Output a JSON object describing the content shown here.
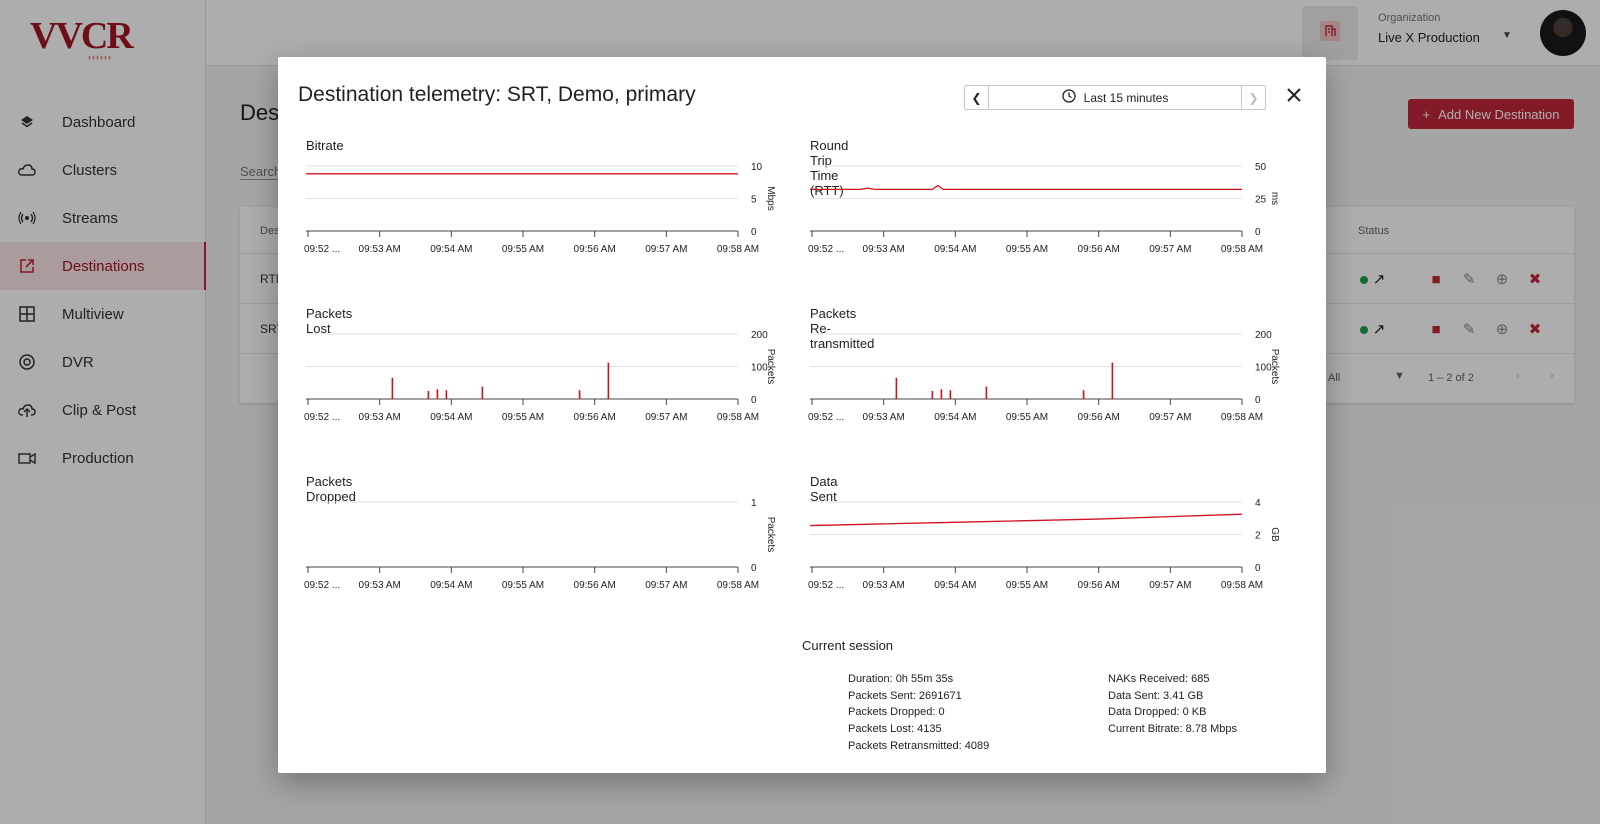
{
  "sidebar": {
    "logo": "VVCR",
    "items": [
      {
        "label": "Dashboard",
        "icon": "layers-icon",
        "active": false
      },
      {
        "label": "Clusters",
        "icon": "cloud-icon",
        "active": false
      },
      {
        "label": "Streams",
        "icon": "broadcast-icon",
        "active": false
      },
      {
        "label": "Destinations",
        "icon": "open-external-icon",
        "active": true
      },
      {
        "label": "Multiview",
        "icon": "grid-icon",
        "active": false
      },
      {
        "label": "DVR",
        "icon": "record-icon",
        "active": false
      },
      {
        "label": "Clip & Post",
        "icon": "cloud-upload-icon",
        "active": false
      },
      {
        "label": "Production",
        "icon": "camera-icon",
        "active": false
      }
    ]
  },
  "topbar": {
    "org_label": "Organization",
    "org_value": "Live X Production"
  },
  "page": {
    "title": "Dest",
    "search_placeholder": "Search",
    "add_button": "Add New Destination",
    "table": {
      "col_destination": "Des",
      "col_status": "Status",
      "rows": [
        {
          "name": "RTM"
        },
        {
          "name": "SRT"
        }
      ],
      "rows_per_page": "All",
      "range": "1 – 2 of 2"
    }
  },
  "modal": {
    "title": "Destination telemetry: SRT, Demo, primary",
    "time_range": "Last 15 minutes",
    "charts": [
      {
        "title": "Bitrate",
        "unit": "Mbps",
        "ticks": [
          "0",
          "5",
          "10"
        ]
      },
      {
        "title": "Round Trip Time (RTT)",
        "unit": "ms",
        "ticks": [
          "0",
          "25",
          "50"
        ]
      },
      {
        "title": "Packets Lost",
        "unit": "Packets",
        "ticks": [
          "0",
          "100",
          "200"
        ]
      },
      {
        "title": "Packets Re-transmitted",
        "unit": "Packets",
        "ticks": [
          "0",
          "100",
          "200"
        ]
      },
      {
        "title": "Packets Dropped",
        "unit": "Packets",
        "ticks": [
          "0",
          "1"
        ]
      },
      {
        "title": "Data Sent",
        "unit": "GB",
        "ticks": [
          "0",
          "2",
          "4"
        ]
      }
    ],
    "session": {
      "title": "Current session",
      "left": [
        "Duration: 0h 55m 35s",
        "Packets Sent: 2691671",
        "Packets Dropped: 0",
        "Packets Lost: 4135",
        "Packets Retransmitted: 4089"
      ],
      "right": [
        "NAKs Received: 685",
        "Data Sent: 3.41 GB",
        "Data Dropped: 0 KB",
        "Current Bitrate: 8.78 Mbps"
      ]
    }
  },
  "colors": {
    "accent": "#c0283a",
    "line": "#d0101f",
    "status_ok": "#1aa34a"
  },
  "chart_data": [
    {
      "type": "line",
      "title": "Bitrate",
      "ylabel": "Mbps",
      "ylim": [
        0,
        10
      ],
      "x_ticks": [
        "09:52 ...",
        "09:53 AM",
        "09:54 AM",
        "09:55 AM",
        "09:56 AM",
        "09:57 AM",
        "09:58 AM"
      ],
      "x": [
        0,
        1,
        2,
        3,
        4,
        5,
        6,
        7,
        8,
        9,
        10,
        11,
        12
      ],
      "series": [
        {
          "values": [
            8.8,
            8.8,
            8.8,
            8.8,
            8.8,
            8.8,
            8.8,
            8.8,
            8.8,
            8.8,
            8.8,
            8.8,
            8.8
          ]
        }
      ]
    },
    {
      "type": "line",
      "title": "Round Trip Time (RTT)",
      "ylabel": "ms",
      "ylim": [
        0,
        50
      ],
      "x_ticks": [
        "09:52 ...",
        "09:53 AM",
        "09:54 AM",
        "09:55 AM",
        "09:56 AM",
        "09:57 AM",
        "09:58 AM"
      ],
      "x": [
        0,
        1,
        1.4,
        1.6,
        1.8,
        2.2,
        3,
        3.4,
        3.55,
        3.7,
        4,
        5,
        6,
        7,
        8,
        9,
        10,
        11,
        12
      ],
      "series": [
        {
          "values": [
            32,
            32,
            32,
            33,
            32,
            32,
            32,
            32,
            35,
            32,
            32,
            32,
            32,
            32,
            32,
            32,
            32,
            32,
            32
          ]
        }
      ]
    },
    {
      "type": "bar",
      "title": "Packets Lost",
      "ylabel": "Packets",
      "ylim": [
        0,
        200
      ],
      "x_ticks": [
        "09:52 ...",
        "09:53 AM",
        "09:54 AM",
        "09:55 AM",
        "09:56 AM",
        "09:57 AM",
        "09:58 AM"
      ],
      "x": [
        2.4,
        3.4,
        3.65,
        3.9,
        4.9,
        7.6,
        8.4
      ],
      "values": [
        65,
        25,
        30,
        27,
        38,
        27,
        112
      ]
    },
    {
      "type": "bar",
      "title": "Packets Re-transmitted",
      "ylabel": "Packets",
      "ylim": [
        0,
        200
      ],
      "x_ticks": [
        "09:52 ...",
        "09:53 AM",
        "09:54 AM",
        "09:55 AM",
        "09:56 AM",
        "09:57 AM",
        "09:58 AM"
      ],
      "x": [
        2.4,
        3.4,
        3.65,
        3.9,
        4.9,
        7.6,
        8.4
      ],
      "values": [
        65,
        25,
        30,
        27,
        38,
        27,
        112
      ]
    },
    {
      "type": "line",
      "title": "Packets Dropped",
      "ylabel": "Packets",
      "ylim": [
        0,
        1
      ],
      "x_ticks": [
        "09:52 ...",
        "09:53 AM",
        "09:54 AM",
        "09:55 AM",
        "09:56 AM",
        "09:57 AM",
        "09:58 AM"
      ],
      "x": [],
      "series": [
        {
          "values": []
        }
      ]
    },
    {
      "type": "line",
      "title": "Data Sent",
      "ylabel": "GB",
      "ylim": [
        0,
        4
      ],
      "x_ticks": [
        "09:52 ...",
        "09:53 AM",
        "09:54 AM",
        "09:55 AM",
        "09:56 AM",
        "09:57 AM",
        "09:58 AM"
      ],
      "x": [
        0,
        2,
        4,
        6,
        8,
        10,
        12
      ],
      "series": [
        {
          "values": [
            2.55,
            2.65,
            2.75,
            2.85,
            2.95,
            3.1,
            3.25
          ]
        }
      ]
    }
  ]
}
